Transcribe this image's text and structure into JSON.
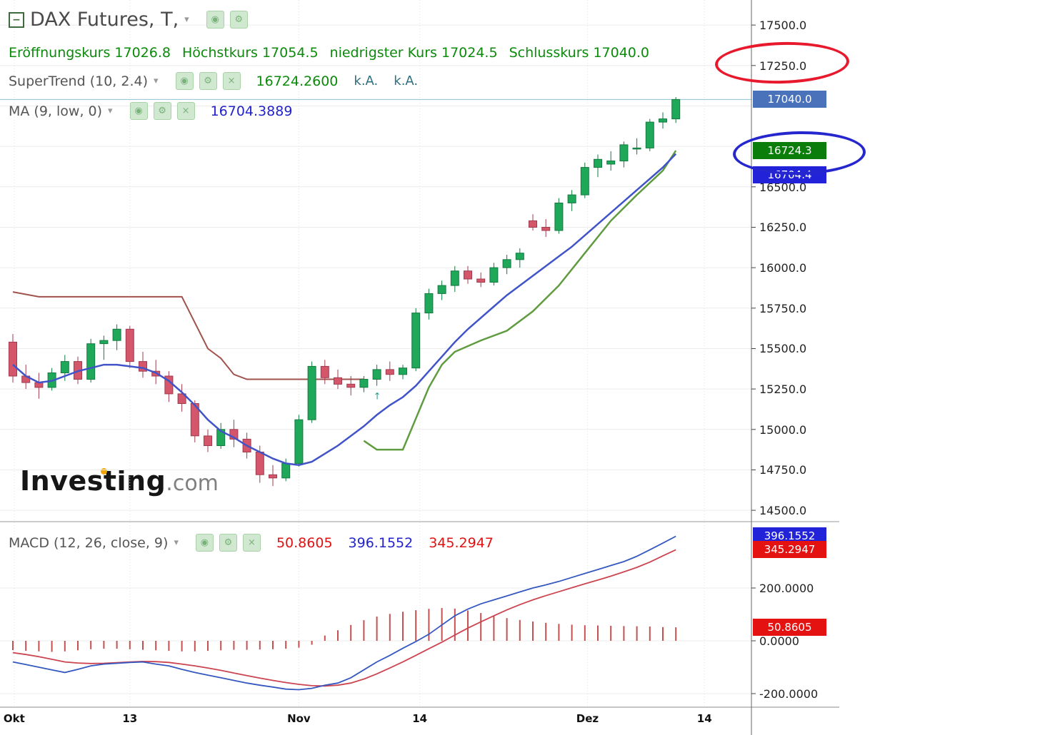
{
  "header": {
    "title": "DAX Futures, T,",
    "open_label": "Eröffnungskurs",
    "open_value": "17026.8",
    "high_label": "Höchstkurs",
    "high_value": "17054.5",
    "low_label": "niedrigster Kurs",
    "low_value": "17024.5",
    "close_label": "Schlusskurs",
    "close_value": "17040.0"
  },
  "indicators": {
    "supertrend": {
      "label": "SuperTrend (10, 2.4)",
      "value": "16724.2600",
      "na_1": "k.A.",
      "na_2": "k.A."
    },
    "ma": {
      "label": "MA (9, low, 0)",
      "value": "16704.3889"
    },
    "macd": {
      "label": "MACD (12, 26, close, 9)",
      "hist_value": "50.8605",
      "macd_value": "396.1552",
      "signal_value": "345.2947"
    }
  },
  "watermark": {
    "brand": "Investing",
    "tld": ".com"
  },
  "icons": {
    "collapse": "−",
    "eye": "◉",
    "gear": "⚙",
    "close": "×",
    "caret": "▾",
    "arrow_up": "↑"
  },
  "colors": {
    "up": "#1fa75a",
    "up_border": "#157a40",
    "down": "#d4566b",
    "down_border": "#a23a4e",
    "ma": "#4053c8",
    "st_down": "#a0524d",
    "st_up": "#5f9c3f",
    "macd_line": "#3558c0",
    "signal_line": "#cc4450",
    "hist": "#c4504f",
    "price_line": "#8fc3d4",
    "grid": "#ececec"
  },
  "price_axis": {
    "ticks": [
      {
        "label": "17500.0",
        "value": 17500
      },
      {
        "label": "17250.0",
        "value": 17250
      },
      {
        "label": "16500.0",
        "value": 16500
      },
      {
        "label": "16250.0",
        "value": 16250
      },
      {
        "label": "16000.0",
        "value": 16000
      },
      {
        "label": "15750.0",
        "value": 15750
      },
      {
        "label": "15500.0",
        "value": 15500
      },
      {
        "label": "15250.0",
        "value": 15250
      },
      {
        "label": "15000.0",
        "value": 15000
      },
      {
        "label": "14750.0",
        "value": 14750
      },
      {
        "label": "14500.0",
        "value": 14500
      }
    ],
    "badges": [
      {
        "name": "last-price-badge",
        "label": "17040.0",
        "value": 17040,
        "color": "#4a72ba"
      },
      {
        "name": "supertrend-price-badge",
        "label": "16724.3",
        "value": 16724.3,
        "color": "#0a7d0a"
      },
      {
        "name": "ma-price-badge",
        "label": "16704.4",
        "value": 16704.4,
        "color": "#2222d8"
      }
    ]
  },
  "macd_axis": {
    "ticks": [
      {
        "label": "200.0000",
        "value": 200
      },
      {
        "label": "0.0000",
        "value": 0
      },
      {
        "label": "-200.0000",
        "value": -200
      }
    ],
    "badges": [
      {
        "name": "macd-value-badge",
        "label": "396.1552",
        "value": 396.1552,
        "color": "#2222d8"
      },
      {
        "name": "macd-signal-badge",
        "label": "345.2947",
        "value": 345.2947,
        "color": "#e51212"
      },
      {
        "name": "macd-hist-badge",
        "label": "50.8605",
        "value": 50.8605,
        "color": "#e51212"
      }
    ]
  },
  "time_axis": {
    "labels": [
      {
        "text": "Okt",
        "index": 0.1
      },
      {
        "text": "13",
        "index": 9
      },
      {
        "text": "Nov",
        "index": 22
      },
      {
        "text": "14",
        "index": 31.3
      },
      {
        "text": "Dez",
        "index": 44.2
      },
      {
        "text": "14",
        "index": 53.2
      }
    ]
  },
  "chart_data": [
    {
      "type": "candlestick",
      "title": "DAX Futures, T (daily)",
      "ylim": [
        14430,
        17655
      ],
      "ytick_step": 250,
      "last_price": 17040,
      "ohlc_current": {
        "open": 17026.8,
        "high": 17054.5,
        "low": 17024.5,
        "close": 17040.0
      },
      "x_axis_labels": [
        "Okt",
        "13",
        "Nov",
        "14",
        "Dez",
        "14"
      ],
      "candles": [
        [
          15540,
          15590,
          15290,
          15330
        ],
        [
          15330,
          15400,
          15250,
          15290
        ],
        [
          15290,
          15350,
          15190,
          15260
        ],
        [
          15260,
          15380,
          15240,
          15350
        ],
        [
          15350,
          15460,
          15300,
          15420
        ],
        [
          15420,
          15450,
          15280,
          15310
        ],
        [
          15310,
          15560,
          15290,
          15530
        ],
        [
          15530,
          15580,
          15430,
          15550
        ],
        [
          15550,
          15650,
          15490,
          15620
        ],
        [
          15620,
          15640,
          15380,
          15420
        ],
        [
          15420,
          15480,
          15320,
          15360
        ],
        [
          15360,
          15430,
          15280,
          15330
        ],
        [
          15330,
          15360,
          15170,
          15220
        ],
        [
          15220,
          15280,
          15110,
          15160
        ],
        [
          15160,
          15180,
          14920,
          14960
        ],
        [
          14960,
          15000,
          14860,
          14900
        ],
        [
          14900,
          15040,
          14880,
          15000
        ],
        [
          15000,
          15060,
          14890,
          14940
        ],
        [
          14940,
          14980,
          14820,
          14860
        ],
        [
          14860,
          14900,
          14670,
          14720
        ],
        [
          14720,
          14780,
          14650,
          14700
        ],
        [
          14700,
          14820,
          14680,
          14790
        ],
        [
          14790,
          15090,
          14770,
          15060
        ],
        [
          15060,
          15420,
          15040,
          15390
        ],
        [
          15390,
          15430,
          15280,
          15320
        ],
        [
          15320,
          15370,
          15250,
          15280
        ],
        [
          15280,
          15330,
          15210,
          15260
        ],
        [
          15260,
          15330,
          15230,
          15310
        ],
        [
          15310,
          15400,
          15270,
          15370
        ],
        [
          15370,
          15420,
          15300,
          15340
        ],
        [
          15340,
          15400,
          15310,
          15380
        ],
        [
          15380,
          15750,
          15360,
          15720
        ],
        [
          15720,
          15870,
          15680,
          15840
        ],
        [
          15840,
          15920,
          15800,
          15890
        ],
        [
          15890,
          16010,
          15850,
          15980
        ],
        [
          15980,
          16010,
          15900,
          15930
        ],
        [
          15930,
          15970,
          15880,
          15910
        ],
        [
          15910,
          16030,
          15890,
          16000
        ],
        [
          16000,
          16080,
          15960,
          16050
        ],
        [
          16050,
          16120,
          16000,
          16090
        ],
        [
          16290,
          16330,
          16230,
          16250
        ],
        [
          16250,
          16300,
          16190,
          16230
        ],
        [
          16230,
          16430,
          16210,
          16400
        ],
        [
          16400,
          16480,
          16350,
          16450
        ],
        [
          16450,
          16650,
          16430,
          16620
        ],
        [
          16620,
          16700,
          16560,
          16670
        ],
        [
          16640,
          16720,
          16600,
          16660
        ],
        [
          16660,
          16780,
          16620,
          16760
        ],
        [
          16740,
          16800,
          16700,
          16740
        ],
        [
          16740,
          16920,
          16720,
          16900
        ],
        [
          16900,
          16960,
          16860,
          16920
        ],
        [
          16920,
          17054.5,
          16895,
          17040
        ]
      ],
      "overlays": [
        {
          "name": "SuperTrend (10, 2.4) downtrend",
          "color_key": "st_down",
          "points": [
            [
              0,
              15850
            ],
            [
              2,
              15820
            ],
            [
              13,
              15820
            ],
            [
              15,
              15500
            ],
            [
              16,
              15440
            ],
            [
              17,
              15340
            ],
            [
              18,
              15310
            ],
            [
              27,
              15310
            ]
          ]
        },
        {
          "name": "SuperTrend (10, 2.4) uptrend",
          "color_key": "st_up",
          "points": [
            [
              27,
              14930
            ],
            [
              28,
              14875
            ],
            [
              30,
              14875
            ],
            [
              32,
              15260
            ],
            [
              33,
              15400
            ],
            [
              34,
              15480
            ],
            [
              36,
              15550
            ],
            [
              38,
              15610
            ],
            [
              40,
              15730
            ],
            [
              42,
              15890
            ],
            [
              44,
              16090
            ],
            [
              46,
              16290
            ],
            [
              48,
              16450
            ],
            [
              50,
              16600
            ],
            [
              51,
              16724
            ]
          ]
        },
        {
          "name": "MA (9, low, 0)",
          "color_key": "ma",
          "values": [
            15400,
            15330,
            15290,
            15300,
            15330,
            15360,
            15380,
            15400,
            15400,
            15390,
            15380,
            15350,
            15300,
            15230,
            15150,
            15060,
            14990,
            14950,
            14900,
            14860,
            14820,
            14790,
            14780,
            14800,
            14850,
            14900,
            14960,
            15020,
            15090,
            15150,
            15200,
            15270,
            15360,
            15450,
            15540,
            15620,
            15690,
            15760,
            15830,
            15890,
            15950,
            16010,
            16070,
            16130,
            16200,
            16270,
            16340,
            16410,
            16480,
            16550,
            16620,
            16704
          ]
        }
      ],
      "markers": [
        {
          "type": "up-arrow",
          "index": 28,
          "price": 15240
        }
      ]
    },
    {
      "type": "macd",
      "title": "MACD (12, 26, close, 9)",
      "ylim": [
        -260,
        470
      ],
      "macd_line": [
        -80,
        -90,
        -100,
        -110,
        -120,
        -108,
        -95,
        -88,
        -85,
        -82,
        -80,
        -88,
        -95,
        -108,
        -120,
        -130,
        -140,
        -150,
        -160,
        -168,
        -175,
        -183,
        -185,
        -180,
        -168,
        -160,
        -140,
        -110,
        -80,
        -55,
        -28,
        -3,
        25,
        60,
        95,
        120,
        140,
        155,
        170,
        185,
        200,
        212,
        225,
        240,
        255,
        270,
        285,
        300,
        320,
        345,
        370,
        396
      ],
      "signal_line": [
        -45,
        -52,
        -60,
        -70,
        -80,
        -84,
        -86,
        -85,
        -83,
        -80,
        -78,
        -79,
        -82,
        -88,
        -95,
        -103,
        -112,
        -122,
        -132,
        -141,
        -150,
        -158,
        -165,
        -170,
        -171,
        -168,
        -160,
        -145,
        -125,
        -103,
        -80,
        -55,
        -30,
        -5,
        22,
        48,
        72,
        95,
        117,
        137,
        155,
        171,
        186,
        201,
        216,
        230,
        245,
        261,
        278,
        298,
        322,
        345
      ],
      "histogram": [
        -35,
        -38,
        -40,
        -42,
        -40,
        -36,
        -32,
        -30,
        -30,
        -32,
        -34,
        -36,
        -38,
        -40,
        -40,
        -38,
        -36,
        -34,
        -34,
        -33,
        -32,
        -30,
        -26,
        -15,
        20,
        40,
        60,
        78,
        92,
        102,
        110,
        116,
        121,
        124,
        122,
        115,
        105,
        95,
        86,
        79,
        73,
        68,
        64,
        61,
        59,
        58,
        57,
        56,
        55,
        54,
        52,
        51
      ]
    }
  ]
}
